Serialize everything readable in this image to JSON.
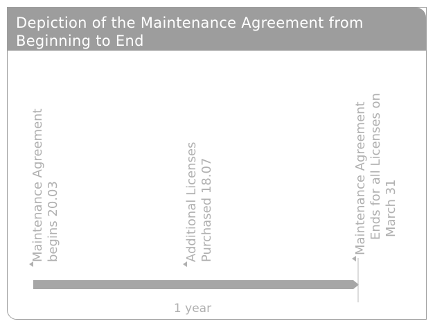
{
  "header": {
    "title": "Depiction of the Maintenance Agreement from Beginning to End"
  },
  "milestones": [
    {
      "lines": [
        "Maintenance Agreement",
        "begins 20.03"
      ]
    },
    {
      "lines": [
        "Additional Licenses",
        "Purchased 18.07"
      ]
    },
    {
      "lines": [
        "Maintenance Agreement",
        "Ends for all Licenses on",
        "March 31"
      ]
    }
  ],
  "duration_label": "1 year"
}
